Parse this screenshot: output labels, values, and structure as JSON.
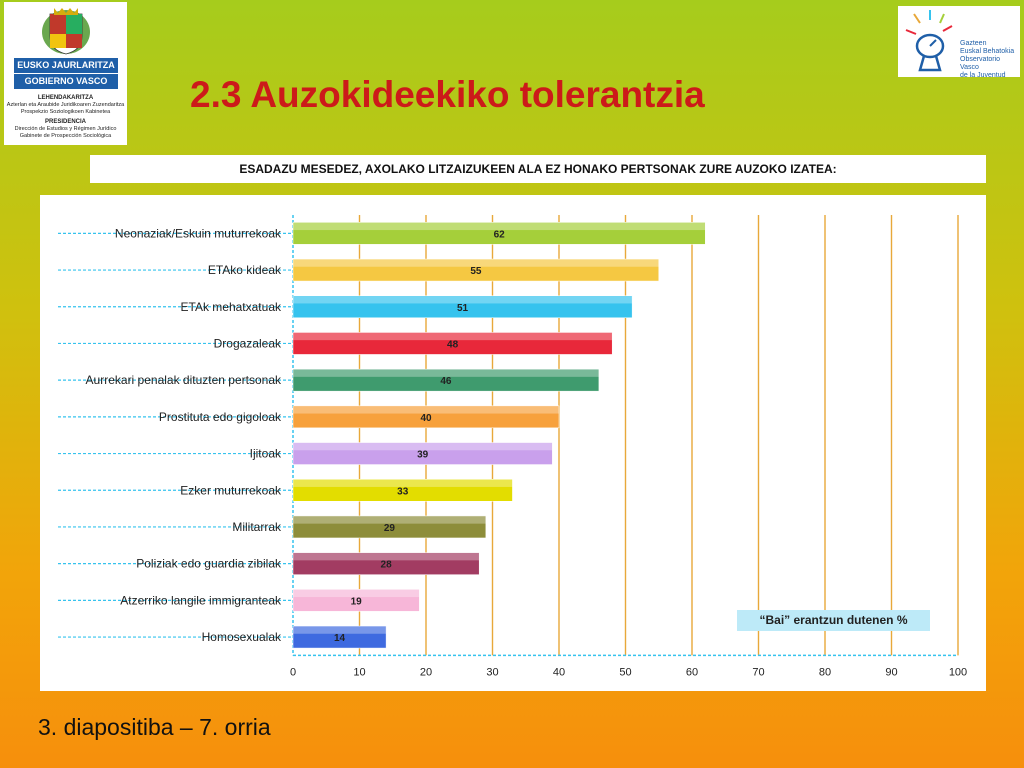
{
  "logo_left": {
    "line1": "EUSKO JAURLARITZA",
    "line2": "GOBIERNO VASCO",
    "dept1": "LEHENDAKARITZA",
    "dept1_sub1": "Azterlan eta Araubide Juridikoaren Zuzendaritza",
    "dept1_sub2": "Prospekzio Soziologikoen Kabinetea",
    "dept2": "PRESIDENCIA",
    "dept2_sub1": "Dirección de Estudios y Régimen Jurídico",
    "dept2_sub2": "Gabinete de Prospección Sociológica"
  },
  "logo_right": {
    "line1": "Gazteen",
    "line2": "Euskal Behatokia",
    "line3": "Observatorio Vasco",
    "line4": "de la Juventud"
  },
  "title": "2.3 Auzokideekiko tolerantzia",
  "question": "ESADAZU MESEDEZ, AXOLAKO LITZAIZUKEEN ALA EZ HONAKO PERTSONAK ZURE AUZOKO IZATEA:",
  "footer": "3. diapositiba – 7. orria",
  "chart_data": {
    "type": "bar",
    "orientation": "horizontal",
    "categories": [
      "Neonaziak/Eskuin muturrekoak",
      "ETAko kideak",
      "ETAk mehatxatuak",
      "Drogazaleak",
      "Aurrekari penalak dituzten pertsonak",
      "Prostituta edo gigoloak",
      "Ijitoak",
      "Ezker muturrekoak",
      "Militarrak",
      "Poliziak edo guardia zibilak",
      "Atzerriko langile immigranteak",
      "Homosexualak"
    ],
    "values": [
      62,
      55,
      51,
      48,
      46,
      40,
      39,
      33,
      29,
      28,
      19,
      14
    ],
    "bar_colors": [
      "#a5cf3a",
      "#f5c842",
      "#36c3ee",
      "#e8283a",
      "#3f9b6e",
      "#f7a13c",
      "#c9a0ec",
      "#e3dd00",
      "#8d8d3a",
      "#a23c62",
      "#f7b6d8",
      "#3e6ae0"
    ],
    "gridline_color": "#e8a83a",
    "xlim": [
      0,
      100
    ],
    "xticks": [
      "0",
      "10",
      "20",
      "30",
      "40",
      "50",
      "60",
      "70",
      "80",
      "90",
      "100"
    ],
    "legend_label": "“Bai” erantzun dutenen %",
    "legend_position": "bottom-right"
  }
}
